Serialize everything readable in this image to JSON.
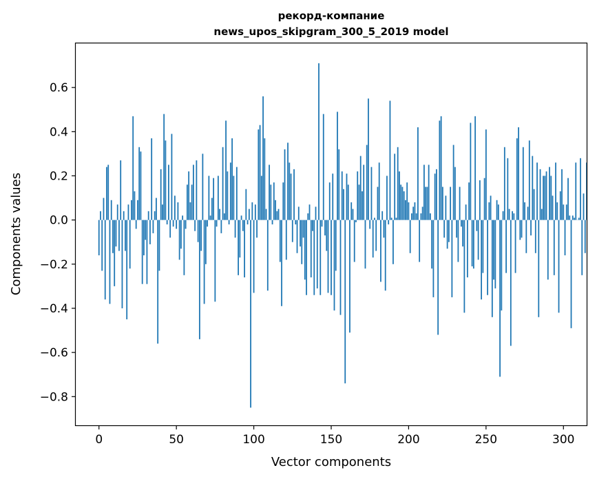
{
  "chart_data": {
    "type": "bar",
    "title_line1": "рекорд-компание",
    "title_line2": "news_upos_skipgram_300_5_2019 model",
    "xlabel": "Vector components",
    "ylabel": "Components values",
    "xlim": [
      -15,
      315
    ],
    "ylim": [
      -0.93,
      0.8
    ],
    "xticks": [
      0,
      50,
      100,
      150,
      200,
      250,
      300
    ],
    "xtick_labels": [
      "0",
      "50",
      "100",
      "150",
      "200",
      "250",
      "300"
    ],
    "yticks": [
      -0.8,
      -0.6,
      -0.4,
      -0.2,
      0.0,
      0.2,
      0.4,
      0.6
    ],
    "ytick_labels": [
      "−0.8",
      "−0.6",
      "−0.4",
      "−0.2",
      "0.0",
      "0.2",
      "0.4",
      "0.6"
    ],
    "bar_color": "#1f77b4",
    "values": [
      -0.16,
      0.04,
      -0.23,
      0.1,
      -0.36,
      0.24,
      0.25,
      -0.38,
      0.09,
      -0.15,
      -0.3,
      -0.12,
      0.07,
      -0.14,
      0.27,
      -0.4,
      0.04,
      -0.14,
      -0.45,
      0.07,
      -0.22,
      0.09,
      0.47,
      0.13,
      -0.04,
      0.09,
      0.33,
      0.31,
      -0.29,
      -0.16,
      -0.09,
      -0.29,
      0.04,
      -0.11,
      0.37,
      -0.06,
      0.04,
      0.1,
      -0.56,
      -0.23,
      0.23,
      0.07,
      0.48,
      0.36,
      -0.02,
      0.25,
      -0.08,
      0.39,
      -0.03,
      0.11,
      -0.04,
      0.08,
      -0.18,
      -0.13,
      0.02,
      -0.25,
      -0.04,
      0.16,
      0.22,
      0.08,
      0.16,
      0.25,
      -0.05,
      0.27,
      -0.1,
      -0.54,
      -0.14,
      0.3,
      -0.38,
      -0.2,
      -0.03,
      0.2,
      0.02,
      0.1,
      0.19,
      -0.37,
      -0.03,
      0.2,
      0.05,
      -0.06,
      0.33,
      0.03,
      0.45,
      0.22,
      -0.02,
      0.26,
      0.37,
      0.2,
      -0.08,
      0.24,
      -0.25,
      -0.17,
      0.02,
      -0.05,
      -0.26,
      0.14,
      -0.02,
      0.05,
      -0.85,
      0.08,
      -0.33,
      0.07,
      -0.08,
      0.41,
      0.43,
      0.2,
      0.56,
      0.37,
      0.05,
      -0.32,
      0.25,
      0.16,
      -0.02,
      0.17,
      0.09,
      0.04,
      0.05,
      -0.19,
      -0.39,
      0.17,
      0.32,
      -0.18,
      0.35,
      0.26,
      0.21,
      -0.1,
      0.23,
      -0.02,
      -0.15,
      0.06,
      -0.12,
      -0.2,
      -0.08,
      -0.27,
      -0.34,
      0.03,
      0.07,
      -0.26,
      -0.05,
      -0.34,
      0.06,
      -0.31,
      0.71,
      -0.34,
      -0.03,
      0.48,
      -0.07,
      -0.14,
      -0.33,
      0.17,
      -0.34,
      0.21,
      -0.41,
      -0.23,
      0.49,
      0.32,
      -0.43,
      0.22,
      0.14,
      -0.74,
      0.21,
      0.16,
      -0.51,
      0.08,
      0.05,
      -0.19,
      -0.01,
      0.22,
      0.16,
      0.29,
      0.13,
      0.25,
      -0.22,
      0.34,
      0.55,
      -0.04,
      0.24,
      -0.17,
      0.01,
      -0.14,
      0.15,
      0.26,
      -0.28,
      0.04,
      -0.08,
      -0.32,
      0.2,
      -0.02,
      0.54,
      0.01,
      -0.2,
      0.3,
      0.01,
      0.33,
      0.22,
      0.16,
      0.15,
      0.13,
      0.09,
      0.17,
      0.08,
      -0.15,
      0.03,
      0.06,
      0.08,
      0.03,
      0.42,
      -0.19,
      0.03,
      0.06,
      0.25,
      0.15,
      0.15,
      0.25,
      0.03,
      -0.22,
      -0.35,
      0.21,
      0.23,
      -0.52,
      0.45,
      0.47,
      0.15,
      -0.08,
      0.11,
      -0.13,
      -0.1,
      0.15,
      -0.35,
      0.34,
      0.24,
      -0.08,
      -0.19,
      0.15,
      -0.03,
      -0.12,
      -0.42,
      0.07,
      -0.26,
      0.17,
      0.44,
      -0.21,
      -0.22,
      0.47,
      -0.05,
      -0.18,
      0.18,
      -0.36,
      -0.24,
      0.19,
      0.41,
      -0.34,
      0.08,
      0.11,
      -0.44,
      -0.27,
      -0.31,
      0.09,
      0.07,
      -0.71,
      -0.41,
      0.04,
      0.33,
      -0.24,
      0.28,
      0.05,
      -0.57,
      0.04,
      0.03,
      -0.24,
      0.37,
      0.42,
      -0.09,
      -0.08,
      0.33,
      0.08,
      -0.15,
      0.06,
      0.36,
      -0.07,
      0.29,
      0.14,
      -0.15,
      0.26,
      -0.44,
      0.23,
      0.05,
      0.2,
      0.2,
      0.22,
      -0.27,
      0.24,
      0.2,
      0.11,
      -0.25,
      0.26,
      0.08,
      -0.42,
      0.13,
      0.23,
      0.07,
      -0.16,
      0.07,
      0.19,
      0.02,
      -0.49,
      0.02,
      0.01,
      0.26,
      0.0,
      0.01,
      0.28,
      -0.25,
      0.12,
      -0.15,
      0.26
    ]
  }
}
